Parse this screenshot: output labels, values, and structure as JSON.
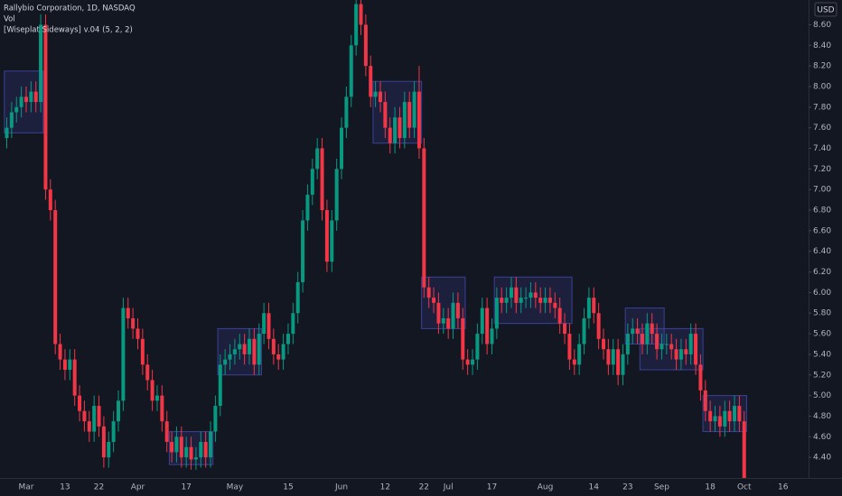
{
  "chart_data": {
    "type": "candlestick",
    "title": "Rallybio Corporation, 1D, NASDAQ",
    "volume_label": "Vol",
    "indicator_label": "[Wiseplat Sideways] v.04 (5, 2, 2)",
    "currency": "USD",
    "up_color": "#089981",
    "down_color": "#f23645",
    "box_color": "#3f46a0",
    "grid": false,
    "categories": [
      null,
      null,
      null,
      null,
      "Mar",
      null,
      null,
      null,
      null,
      null,
      null,
      null,
      "13",
      null,
      null,
      null,
      null,
      null,
      null,
      "22",
      null,
      null,
      null,
      null,
      null,
      null,
      null,
      "Apr",
      null,
      null,
      null,
      null,
      null,
      null,
      null,
      null,
      null,
      "17",
      null,
      null,
      null,
      null,
      null,
      null,
      null,
      null,
      null,
      "May",
      null,
      null,
      null,
      null,
      null,
      null,
      null,
      null,
      null,
      null,
      "15",
      null,
      null,
      null,
      null,
      null,
      null,
      null,
      null,
      null,
      null,
      "Jun",
      null,
      null,
      null,
      null,
      null,
      null,
      null,
      null,
      "12",
      null,
      null,
      null,
      null,
      null,
      null,
      null,
      "22",
      null,
      null,
      null,
      null,
      "Jul",
      null,
      null,
      null,
      null,
      null,
      null,
      null,
      null,
      "17",
      null,
      null,
      null,
      null,
      null,
      null,
      null,
      null,
      null,
      null,
      "Aug",
      null,
      null,
      null,
      null,
      null,
      null,
      null,
      null,
      null,
      "14",
      null,
      null,
      null,
      null,
      null,
      null,
      "23",
      null,
      null,
      null,
      null,
      null,
      null,
      "Sep",
      null,
      null,
      null,
      null,
      null,
      null,
      null,
      null,
      null,
      "18",
      null,
      null,
      null,
      null,
      null,
      null,
      "Oct",
      null,
      null,
      null,
      null,
      null,
      null,
      null,
      "16"
    ],
    "open": [
      7.5,
      7.6,
      7.75,
      7.8,
      7.9,
      7.85,
      7.95,
      7.85,
      8.6,
      7.0,
      6.8,
      5.5,
      5.35,
      5.25,
      5.35,
      5.0,
      4.85,
      4.75,
      4.65,
      4.9,
      4.7,
      4.4,
      4.55,
      4.75,
      4.95,
      5.85,
      5.75,
      5.65,
      5.55,
      5.3,
      5.15,
      4.95,
      5.0,
      4.75,
      4.55,
      4.45,
      4.6,
      4.4,
      4.5,
      4.38,
      4.4,
      4.55,
      4.4,
      4.65,
      4.9,
      5.3,
      5.35,
      5.4,
      5.45,
      5.5,
      5.4,
      5.55,
      5.3,
      5.6,
      5.8,
      5.55,
      5.4,
      5.35,
      5.5,
      5.6,
      5.8,
      6.1,
      6.7,
      6.95,
      7.2,
      7.4,
      6.8,
      6.3,
      6.7,
      7.2,
      7.6,
      7.9,
      8.4,
      8.8,
      8.6,
      8.2,
      7.9,
      7.95,
      7.85,
      7.6,
      7.45,
      7.7,
      7.5,
      7.85,
      7.6,
      7.95,
      7.4,
      6.05,
      5.95,
      5.9,
      5.7,
      5.75,
      5.65,
      5.9,
      5.75,
      5.35,
      5.3,
      5.35,
      5.6,
      5.85,
      5.5,
      5.65,
      5.95,
      5.9,
      5.95,
      6.05,
      5.9,
      5.95,
      5.95,
      6.0,
      5.95,
      5.9,
      5.95,
      5.9,
      5.85,
      5.7,
      5.6,
      5.35,
      5.3,
      5.5,
      5.75,
      5.95,
      5.8,
      5.55,
      5.45,
      5.3,
      5.45,
      5.2,
      5.4,
      5.6,
      5.65,
      5.6,
      5.5,
      5.7,
      5.6,
      5.45,
      5.5,
      5.5,
      5.45,
      5.35,
      5.45,
      5.4,
      5.6,
      5.3,
      5.05,
      4.85,
      4.75,
      4.8,
      4.7,
      4.85,
      4.75,
      4.9,
      4.75,
      null,
      null,
      null,
      null,
      null,
      null,
      null,
      null
    ],
    "high": [
      7.7,
      7.85,
      7.9,
      8.0,
      8.0,
      8.05,
      8.05,
      8.7,
      8.7,
      7.1,
      6.9,
      5.6,
      5.45,
      5.45,
      5.45,
      5.1,
      4.95,
      4.85,
      5.0,
      5.0,
      4.8,
      4.65,
      4.85,
      5.05,
      5.95,
      5.95,
      5.85,
      5.75,
      5.65,
      5.4,
      5.25,
      5.1,
      5.1,
      4.85,
      4.65,
      4.7,
      4.7,
      4.6,
      4.6,
      4.5,
      4.65,
      4.65,
      4.75,
      5.0,
      5.4,
      5.45,
      5.5,
      5.55,
      5.6,
      5.6,
      5.65,
      5.65,
      5.7,
      5.9,
      5.9,
      5.65,
      5.5,
      5.6,
      5.7,
      5.9,
      6.2,
      6.8,
      7.05,
      7.3,
      7.5,
      7.5,
      6.9,
      6.8,
      7.3,
      7.7,
      8.0,
      8.5,
      8.9,
      8.9,
      8.7,
      8.3,
      8.05,
      8.05,
      7.95,
      7.7,
      7.8,
      7.8,
      7.95,
      7.95,
      8.05,
      8.2,
      7.5,
      6.15,
      6.05,
      6.0,
      5.85,
      5.85,
      6.0,
      6.0,
      5.85,
      5.45,
      5.45,
      5.7,
      5.95,
      5.95,
      5.75,
      6.05,
      6.05,
      6.05,
      6.15,
      6.15,
      6.05,
      6.05,
      6.1,
      6.1,
      6.05,
      6.05,
      6.05,
      6.0,
      5.95,
      5.8,
      5.7,
      5.45,
      5.6,
      5.85,
      6.05,
      6.05,
      5.9,
      5.65,
      5.55,
      5.55,
      5.55,
      5.5,
      5.7,
      5.75,
      5.75,
      5.7,
      5.8,
      5.8,
      5.7,
      5.6,
      5.6,
      5.6,
      5.55,
      5.55,
      5.55,
      5.7,
      5.7,
      5.4,
      5.15,
      4.95,
      4.9,
      4.9,
      4.95,
      4.95,
      5.0,
      5.0,
      4.85,
      null,
      null,
      null,
      null,
      null,
      null,
      null,
      null
    ],
    "low": [
      7.4,
      7.5,
      7.65,
      7.7,
      7.75,
      7.75,
      7.75,
      7.75,
      6.9,
      6.7,
      5.4,
      5.25,
      5.15,
      5.15,
      4.9,
      4.75,
      4.65,
      4.55,
      4.55,
      4.6,
      4.3,
      4.3,
      4.45,
      4.65,
      4.85,
      5.65,
      5.55,
      5.45,
      5.2,
      5.05,
      4.85,
      4.85,
      4.65,
      4.45,
      4.35,
      4.35,
      4.3,
      4.3,
      4.28,
      4.28,
      4.3,
      4.3,
      4.3,
      4.55,
      4.8,
      5.2,
      5.25,
      5.3,
      5.35,
      5.3,
      5.3,
      5.2,
      5.2,
      5.5,
      5.45,
      5.3,
      5.25,
      5.25,
      5.4,
      5.5,
      5.7,
      6.0,
      6.6,
      6.85,
      7.1,
      6.7,
      6.2,
      6.2,
      6.6,
      7.1,
      7.5,
      7.8,
      8.3,
      8.5,
      8.1,
      7.8,
      7.8,
      7.75,
      7.5,
      7.35,
      7.35,
      7.4,
      7.4,
      7.5,
      7.5,
      7.3,
      5.95,
      5.85,
      5.8,
      5.6,
      5.6,
      5.55,
      5.55,
      5.65,
      5.25,
      5.2,
      5.2,
      5.25,
      5.5,
      5.4,
      5.4,
      5.55,
      5.8,
      5.8,
      5.85,
      5.8,
      5.8,
      5.85,
      5.85,
      5.85,
      5.8,
      5.8,
      5.8,
      5.75,
      5.6,
      5.5,
      5.25,
      5.2,
      5.2,
      5.4,
      5.65,
      5.7,
      5.45,
      5.35,
      5.2,
      5.2,
      5.1,
      5.1,
      5.3,
      5.5,
      5.5,
      5.4,
      5.4,
      5.5,
      5.35,
      5.35,
      5.4,
      5.35,
      5.25,
      5.25,
      5.3,
      5.3,
      5.2,
      4.95,
      4.75,
      4.65,
      4.65,
      4.6,
      4.6,
      4.65,
      4.65,
      4.65,
      4.2,
      null,
      null,
      null,
      null,
      null,
      null,
      null,
      null
    ],
    "close": [
      7.6,
      7.75,
      7.8,
      7.9,
      7.85,
      7.95,
      7.85,
      8.6,
      7.0,
      6.8,
      5.5,
      5.35,
      5.25,
      5.35,
      5.0,
      4.85,
      4.75,
      4.65,
      4.9,
      4.7,
      4.4,
      4.55,
      4.75,
      4.95,
      5.85,
      5.75,
      5.65,
      5.55,
      5.3,
      5.15,
      4.95,
      5.0,
      4.75,
      4.55,
      4.45,
      4.6,
      4.4,
      4.5,
      4.38,
      4.4,
      4.55,
      4.4,
      4.65,
      4.9,
      5.3,
      5.35,
      5.4,
      5.45,
      5.5,
      5.4,
      5.55,
      5.3,
      5.6,
      5.8,
      5.55,
      5.4,
      5.35,
      5.5,
      5.6,
      5.8,
      6.1,
      6.7,
      6.95,
      7.2,
      7.4,
      6.8,
      6.3,
      6.7,
      7.2,
      7.6,
      7.9,
      8.4,
      8.8,
      8.6,
      8.2,
      7.9,
      7.95,
      7.85,
      7.6,
      7.45,
      7.7,
      7.5,
      7.85,
      7.6,
      7.95,
      7.4,
      6.05,
      5.95,
      5.9,
      5.7,
      5.75,
      5.65,
      5.9,
      5.75,
      5.35,
      5.3,
      5.35,
      5.6,
      5.85,
      5.5,
      5.65,
      5.95,
      5.9,
      5.95,
      6.05,
      5.9,
      5.95,
      5.95,
      6.0,
      5.95,
      5.9,
      5.95,
      5.9,
      5.85,
      5.7,
      5.6,
      5.35,
      5.3,
      5.5,
      5.75,
      5.95,
      5.8,
      5.55,
      5.45,
      5.3,
      5.45,
      5.2,
      5.4,
      5.6,
      5.65,
      5.6,
      5.5,
      5.7,
      5.6,
      5.45,
      5.5,
      5.5,
      5.45,
      5.35,
      5.45,
      5.4,
      5.6,
      5.3,
      5.05,
      4.85,
      4.75,
      4.8,
      4.7,
      4.85,
      4.75,
      4.9,
      4.75,
      4.2,
      null,
      null,
      null,
      null,
      null,
      null,
      null,
      null
    ],
    "boxes": [
      {
        "from": 0,
        "to": 7,
        "top": 8.15,
        "bottom": 7.55
      },
      {
        "from": 34,
        "to": 42,
        "top": 4.65,
        "bottom": 4.33
      },
      {
        "from": 44,
        "to": 52,
        "top": 5.65,
        "bottom": 5.2
      },
      {
        "from": 76,
        "to": 85,
        "top": 8.05,
        "bottom": 7.45
      },
      {
        "from": 86,
        "to": 94,
        "top": 6.15,
        "bottom": 5.65
      },
      {
        "from": 101,
        "to": 116,
        "top": 6.15,
        "bottom": 5.7
      },
      {
        "from": 128,
        "to": 135,
        "top": 5.85,
        "bottom": 5.5
      },
      {
        "from": 131,
        "to": 143,
        "top": 5.65,
        "bottom": 5.25
      },
      {
        "from": 144,
        "to": 152,
        "top": 5.0,
        "bottom": 4.65
      }
    ],
    "ylim": [
      4.2,
      8.84
    ],
    "yticks": [
      {
        "value": 4.4,
        "label": "4.40"
      },
      {
        "value": 4.6,
        "label": "4.60"
      },
      {
        "value": 4.8,
        "label": "4.80"
      },
      {
        "value": 5.0,
        "label": "5.00"
      },
      {
        "value": 5.2,
        "label": "5.20"
      },
      {
        "value": 5.4,
        "label": "5.40"
      },
      {
        "value": 5.6,
        "label": "5.60"
      },
      {
        "value": 5.8,
        "label": "5.80"
      },
      {
        "value": 6.0,
        "label": "6.00"
      },
      {
        "value": 6.2,
        "label": "6.20"
      },
      {
        "value": 6.4,
        "label": "6.40"
      },
      {
        "value": 6.6,
        "label": "6.60"
      },
      {
        "value": 6.8,
        "label": "6.80"
      },
      {
        "value": 7.0,
        "label": "7.00"
      },
      {
        "value": 7.2,
        "label": "7.20"
      },
      {
        "value": 7.4,
        "label": "7.40"
      },
      {
        "value": 7.6,
        "label": "7.60"
      },
      {
        "value": 7.8,
        "label": "7.80"
      },
      {
        "value": 8.0,
        "label": "8.00"
      },
      {
        "value": 8.2,
        "label": "8.20"
      },
      {
        "value": 8.4,
        "label": "8.40"
      },
      {
        "value": 8.6,
        "label": "8.60"
      }
    ]
  }
}
